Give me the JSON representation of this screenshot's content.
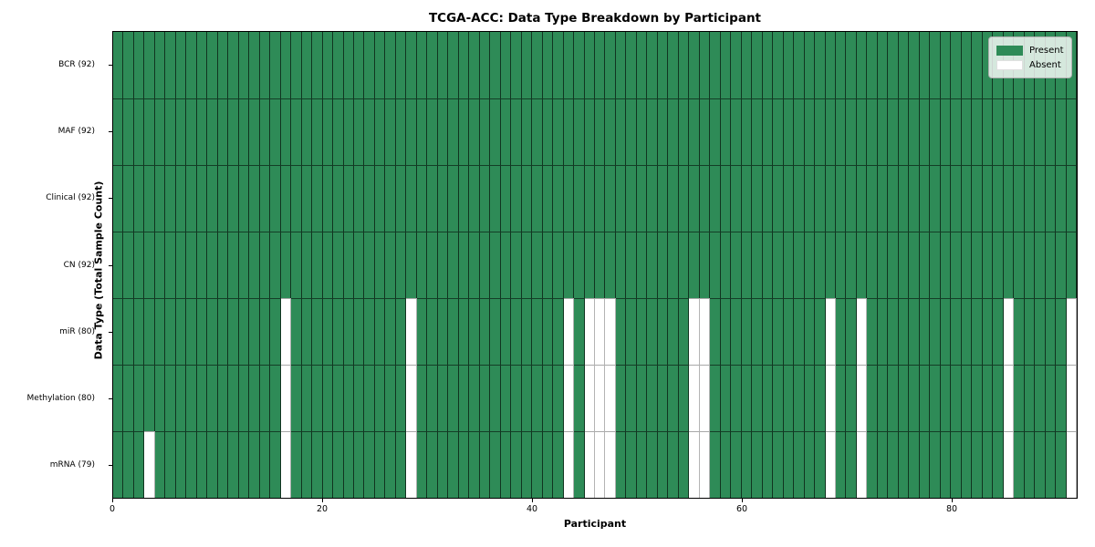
{
  "title": "TCGA-ACC: Data Type Breakdown by Participant",
  "colors": {
    "present": "#2e8b57",
    "absent": "#ffffff",
    "plot_border": "#000000",
    "legend_border": "#b0b0b0"
  },
  "chart_data": {
    "type": "heatmap",
    "title": "TCGA-ACC: Data Type Breakdown by Participant",
    "xlabel": "Participant",
    "ylabel": "Data Type (Total Sample Count)",
    "n_participants": 92,
    "x_ticks": [
      0,
      20,
      40,
      60,
      80
    ],
    "xlim": [
      0,
      92
    ],
    "grid": false,
    "legend_position": "upper right",
    "legend": [
      {
        "label": "Present",
        "color": "#2e8b57"
      },
      {
        "label": "Absent",
        "color": "#ffffff"
      }
    ],
    "rows": [
      {
        "name": "BCR",
        "label": "BCR (92)",
        "total_present": 92,
        "absent_participants": []
      },
      {
        "name": "MAF",
        "label": "MAF (92)",
        "total_present": 92,
        "absent_participants": []
      },
      {
        "name": "Clinical",
        "label": "Clinical (92)",
        "total_present": 92,
        "absent_participants": []
      },
      {
        "name": "CN",
        "label": "CN (92)",
        "total_present": 92,
        "absent_participants": []
      },
      {
        "name": "miR",
        "label": "miR (80)",
        "total_present": 80,
        "absent_participants": [
          16,
          28,
          43,
          45,
          46,
          47,
          55,
          56,
          68,
          71,
          85,
          91
        ]
      },
      {
        "name": "Methylation",
        "label": "Methylation (80)",
        "total_present": 80,
        "absent_participants": [
          16,
          28,
          43,
          45,
          46,
          47,
          55,
          56,
          68,
          71,
          85,
          91
        ]
      },
      {
        "name": "mRNA",
        "label": "mRNA (79)",
        "total_present": 79,
        "absent_participants": [
          3,
          16,
          28,
          43,
          45,
          46,
          47,
          55,
          56,
          68,
          71,
          85,
          91
        ]
      }
    ]
  }
}
